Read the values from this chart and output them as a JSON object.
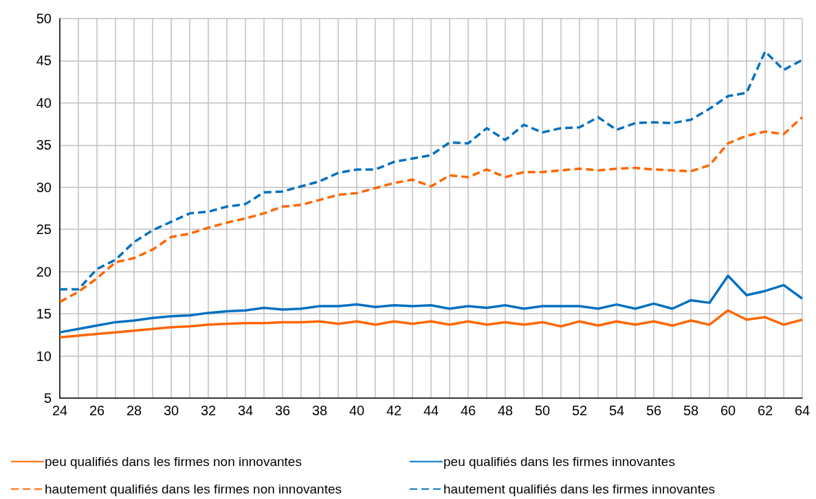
{
  "chart_data": {
    "type": "line",
    "x": [
      24,
      25,
      26,
      27,
      28,
      29,
      30,
      31,
      32,
      33,
      34,
      35,
      36,
      37,
      38,
      39,
      40,
      41,
      42,
      43,
      44,
      45,
      46,
      47,
      48,
      49,
      50,
      51,
      52,
      53,
      54,
      55,
      56,
      57,
      58,
      59,
      60,
      61,
      62,
      63,
      64
    ],
    "xlim": [
      24,
      64
    ],
    "xticks": [
      24,
      {
        "value": 25,
        "label": null
      },
      26,
      {
        "value": 27,
        "label": null
      },
      28,
      {
        "value": 29,
        "label": null
      },
      30,
      {
        "value": 31,
        "label": null
      },
      32,
      {
        "value": 33,
        "label": null
      },
      34,
      {
        "value": 35,
        "label": null
      },
      36,
      {
        "value": 37,
        "label": null
      },
      38,
      {
        "value": 39,
        "label": null
      },
      40,
      {
        "value": 41,
        "label": null
      },
      42,
      {
        "value": 43,
        "label": null
      },
      44,
      {
        "value": 45,
        "label": null
      },
      46,
      {
        "value": 47,
        "label": null
      },
      48,
      {
        "value": 49,
        "label": null
      },
      50,
      {
        "value": 51,
        "label": null
      },
      52,
      {
        "value": 53,
        "label": null
      },
      54,
      {
        "value": 55,
        "label": null
      },
      56,
      {
        "value": 57,
        "label": null
      },
      58,
      {
        "value": 59,
        "label": null
      },
      60,
      {
        "value": 61,
        "label": null
      },
      62,
      {
        "value": 63,
        "label": null
      },
      64
    ],
    "ylim": [
      5,
      50
    ],
    "yticks": [
      5,
      10,
      15,
      20,
      25,
      30,
      35,
      40,
      45,
      50
    ],
    "grid": true,
    "legend": "bottom",
    "marker": "none",
    "series": [
      {
        "name": "peu qualifiés dans les firmes non innovantes",
        "color": "#ff6600",
        "line_style": "solid",
        "values": [
          12.2,
          12.4,
          12.6,
          12.8,
          13.0,
          13.2,
          13.4,
          13.5,
          13.7,
          13.8,
          13.9,
          13.9,
          14.0,
          14.0,
          14.1,
          13.8,
          14.1,
          13.7,
          14.1,
          13.8,
          14.1,
          13.7,
          14.1,
          13.7,
          14.0,
          13.7,
          14.0,
          13.5,
          14.1,
          13.6,
          14.1,
          13.7,
          14.1,
          13.6,
          14.2,
          13.7,
          15.4,
          14.3,
          14.6,
          13.7,
          14.3
        ]
      },
      {
        "name": "peu qualifiés dans les firmes innovantes",
        "color": "#0070c0",
        "line_style": "solid",
        "values": [
          12.8,
          13.2,
          13.6,
          14.0,
          14.2,
          14.5,
          14.7,
          14.8,
          15.1,
          15.3,
          15.4,
          15.7,
          15.5,
          15.6,
          15.9,
          15.9,
          16.1,
          15.8,
          16.0,
          15.9,
          16.0,
          15.6,
          15.9,
          15.7,
          16.0,
          15.6,
          15.9,
          15.9,
          15.9,
          15.6,
          16.1,
          15.6,
          16.2,
          15.6,
          16.6,
          16.3,
          19.5,
          17.2,
          17.7,
          18.4,
          16.8
        ]
      },
      {
        "name": "hautement qualifiés dans les firmes non innovantes",
        "color": "#ff6600",
        "line_style": "dashed",
        "values": [
          16.4,
          17.6,
          19.2,
          21.1,
          21.6,
          22.6,
          24.1,
          24.5,
          25.2,
          25.8,
          26.3,
          26.9,
          27.7,
          27.9,
          28.5,
          29.1,
          29.3,
          29.9,
          30.5,
          30.9,
          30.1,
          31.4,
          31.2,
          32.1,
          31.2,
          31.8,
          31.8,
          32.0,
          32.2,
          32.0,
          32.2,
          32.3,
          32.1,
          32.0,
          31.9,
          32.6,
          35.2,
          36.1,
          36.6,
          36.3,
          38.3
        ]
      },
      {
        "name": "hautement qualifiés dans les firmes innovantes",
        "color": "#0070c0",
        "line_style": "dashed",
        "values": [
          17.9,
          17.9,
          20.3,
          21.4,
          23.5,
          24.9,
          25.9,
          26.9,
          27.1,
          27.7,
          28.0,
          29.4,
          29.5,
          30.1,
          30.7,
          31.7,
          32.1,
          32.1,
          33.0,
          33.4,
          33.8,
          35.3,
          35.2,
          37.0,
          35.6,
          37.4,
          36.5,
          37.0,
          37.1,
          38.3,
          36.8,
          37.6,
          37.7,
          37.6,
          38.0,
          39.3,
          40.8,
          41.2,
          46.1,
          43.9,
          45.1
        ]
      }
    ]
  }
}
